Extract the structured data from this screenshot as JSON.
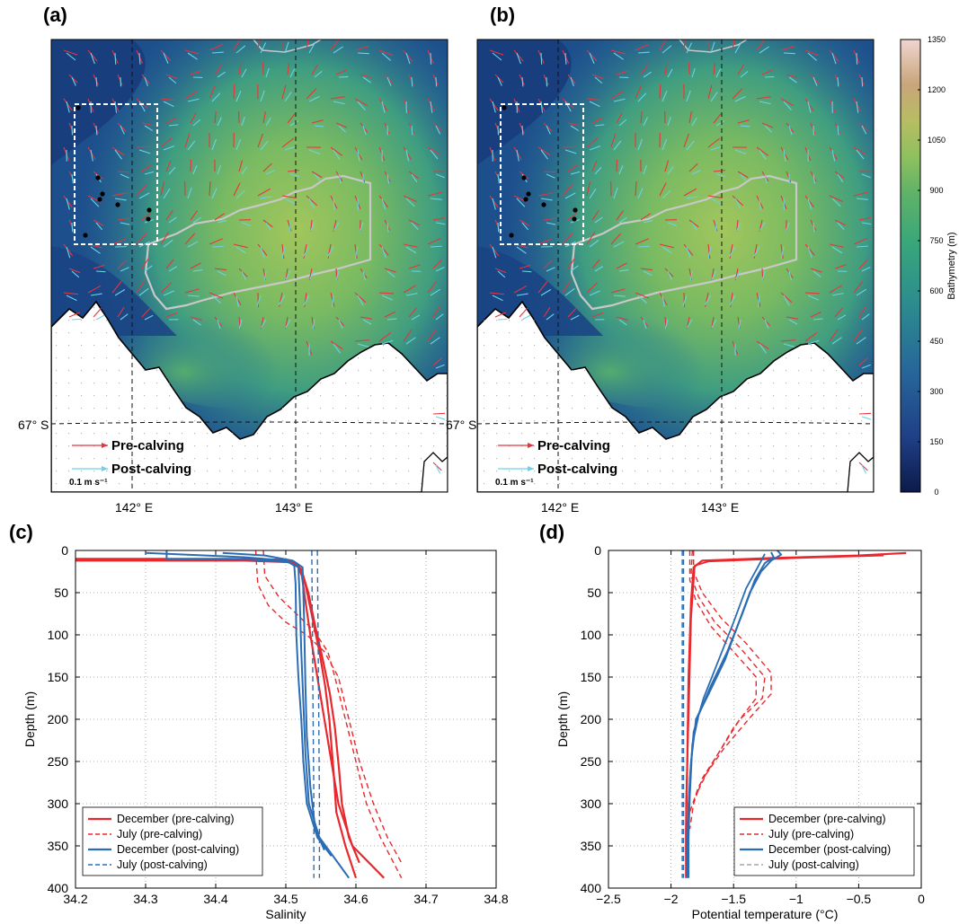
{
  "panel_labels": [
    "(a)",
    "(b)",
    "(c)",
    "(d)"
  ],
  "maps": {
    "lon_labels": [
      "142° E",
      "143° E"
    ],
    "lat_label": "67° S",
    "legend": {
      "pre": "Pre-calving",
      "post": "Post-calving",
      "scale": "0.1 m s⁻¹"
    },
    "colors": {
      "pre": "#e8343c",
      "post": "#6ad3e8",
      "land": "#ffffff"
    }
  },
  "colorbar": {
    "label": "Bathymetry (m)",
    "ticks": [
      "0",
      "150",
      "300",
      "450",
      "600",
      "750",
      "900",
      "1050",
      "1200",
      "1350"
    ]
  },
  "colors": {
    "red": "#e8282d",
    "blue": "#2a6db5",
    "grid": "#9a9a9a"
  },
  "chart_data": [
    {
      "type": "line",
      "panel": "(c)",
      "xlabel": "Salinity",
      "ylabel": "Depth (m)",
      "xlim": [
        34.2,
        34.8
      ],
      "ylim": [
        400,
        0
      ],
      "y_inverted": true,
      "xticks": [
        "34.2",
        "34.3",
        "34.4",
        "34.5",
        "34.6",
        "34.7",
        "34.8"
      ],
      "yticks": [
        "0",
        "50",
        "100",
        "150",
        "200",
        "250",
        "300",
        "350",
        "400"
      ],
      "grid": true,
      "legend_position": "bottom-left",
      "legend": [
        "December (pre-calving)",
        "July (pre-calving)",
        "December (post-calving)",
        "July (post-calving)"
      ],
      "series": [
        {
          "name": "December (pre-calving)",
          "color": "#e8282d",
          "dash": false,
          "width": 2.2,
          "points": [
            [
              34.2,
              10
            ],
            [
              34.42,
              10
            ],
            [
              34.5,
              11
            ],
            [
              34.515,
              15
            ],
            [
              34.523,
              30
            ],
            [
              34.528,
              60
            ],
            [
              34.535,
              100
            ],
            [
              34.545,
              150
            ],
            [
              34.555,
              200
            ],
            [
              34.565,
              250
            ],
            [
              34.575,
              300
            ],
            [
              34.595,
              350
            ],
            [
              34.64,
              388
            ]
          ]
        },
        {
          "name": "December (pre-calving)",
          "color": "#e8282d",
          "dash": false,
          "width": 2.2,
          "points": [
            [
              34.2,
              11
            ],
            [
              34.43,
              11
            ],
            [
              34.5,
              13
            ],
            [
              34.518,
              18
            ],
            [
              34.528,
              40
            ],
            [
              34.538,
              80
            ],
            [
              34.548,
              120
            ],
            [
              34.556,
              160
            ],
            [
              34.562,
              200
            ],
            [
              34.568,
              260
            ],
            [
              34.572,
              310
            ],
            [
              34.585,
              350
            ],
            [
              34.6,
              388
            ]
          ]
        },
        {
          "name": "December (pre-calving)",
          "color": "#e8282d",
          "dash": false,
          "width": 2.2,
          "points": [
            [
              34.2,
              12
            ],
            [
              34.44,
              12
            ],
            [
              34.51,
              14
            ],
            [
              34.522,
              22
            ],
            [
              34.532,
              50
            ],
            [
              34.542,
              90
            ],
            [
              34.553,
              130
            ],
            [
              34.563,
              170
            ],
            [
              34.57,
              210
            ],
            [
              34.576,
              260
            ],
            [
              34.58,
              300
            ],
            [
              34.59,
              340
            ],
            [
              34.605,
              370
            ]
          ]
        },
        {
          "name": "July (pre-calving)",
          "color": "#e8282d",
          "dash": true,
          "width": 1.4,
          "points": [
            [
              34.457,
              0
            ],
            [
              34.46,
              40
            ],
            [
              34.475,
              65
            ],
            [
              34.5,
              85
            ],
            [
              34.53,
              100
            ],
            [
              34.555,
              120
            ],
            [
              34.575,
              150
            ],
            [
              34.59,
              200
            ],
            [
              34.605,
              250
            ],
            [
              34.625,
              300
            ],
            [
              34.645,
              340
            ],
            [
              34.665,
              370
            ]
          ]
        },
        {
          "name": "July (pre-calving)",
          "color": "#e8282d",
          "dash": true,
          "width": 1.4,
          "points": [
            [
              34.468,
              0
            ],
            [
              34.47,
              30
            ],
            [
              34.49,
              55
            ],
            [
              34.515,
              75
            ],
            [
              34.54,
              95
            ],
            [
              34.56,
              120
            ],
            [
              34.57,
              150
            ],
            [
              34.585,
              200
            ],
            [
              34.6,
              250
            ],
            [
              34.615,
              300
            ],
            [
              34.635,
              340
            ],
            [
              34.665,
              388
            ]
          ]
        },
        {
          "name": "December (post-calving)",
          "color": "#2a6db5",
          "dash": false,
          "width": 2.0,
          "points": [
            [
              34.3,
              3
            ],
            [
              34.36,
              5
            ],
            [
              34.44,
              8
            ],
            [
              34.5,
              12
            ],
            [
              34.512,
              18
            ],
            [
              34.514,
              40
            ],
            [
              34.515,
              100
            ],
            [
              34.518,
              150
            ],
            [
              34.522,
              200
            ],
            [
              34.525,
              250
            ],
            [
              34.53,
              300
            ],
            [
              34.545,
              340
            ],
            [
              34.565,
              362
            ]
          ]
        },
        {
          "name": "December (post-calving)",
          "color": "#2a6db5",
          "dash": false,
          "width": 2.0,
          "points": [
            [
              34.33,
              0
            ],
            [
              34.33,
              10
            ],
            [
              34.45,
              11
            ],
            [
              34.505,
              14
            ],
            [
              34.518,
              20
            ],
            [
              34.52,
              60
            ],
            [
              34.522,
              120
            ],
            [
              34.525,
              180
            ],
            [
              34.528,
              240
            ],
            [
              34.533,
              300
            ],
            [
              34.548,
              340
            ],
            [
              34.57,
              365
            ],
            [
              34.59,
              388
            ]
          ]
        },
        {
          "name": "December (post-calving)",
          "color": "#2a6db5",
          "dash": false,
          "width": 2.0,
          "points": [
            [
              34.41,
              3
            ],
            [
              34.47,
              6
            ],
            [
              34.51,
              12
            ],
            [
              34.524,
              20
            ],
            [
              34.526,
              80
            ],
            [
              34.528,
              160
            ],
            [
              34.53,
              220
            ],
            [
              34.535,
              280
            ],
            [
              34.542,
              330
            ],
            [
              34.555,
              355
            ]
          ]
        },
        {
          "name": "July (post-calving)",
          "color": "#2a6db5",
          "dash": true,
          "width": 1.4,
          "points": [
            [
              34.537,
              0
            ],
            [
              34.538,
              100
            ],
            [
              34.539,
              200
            ],
            [
              34.54,
              300
            ],
            [
              34.54,
              388
            ]
          ]
        },
        {
          "name": "July (post-calving)",
          "color": "#2a6db5",
          "dash": true,
          "width": 1.4,
          "points": [
            [
              34.545,
              0
            ],
            [
              34.546,
              100
            ],
            [
              34.547,
              200
            ],
            [
              34.548,
              300
            ],
            [
              34.548,
              388
            ]
          ]
        }
      ]
    },
    {
      "type": "line",
      "panel": "(d)",
      "xlabel": "Potential temperature (°C)",
      "ylabel": "Depth (m)",
      "xlim": [
        -2.5,
        0
      ],
      "ylim": [
        400,
        0
      ],
      "y_inverted": true,
      "xticks": [
        "−2.5",
        "−2",
        "−1.5",
        "−1",
        "−0.5",
        "0"
      ],
      "yticks": [
        "0",
        "50",
        "100",
        "150",
        "200",
        "250",
        "300",
        "350",
        "400"
      ],
      "grid": true,
      "legend_position": "bottom-right",
      "legend": [
        "December (pre-calving)",
        "July (pre-calving)",
        "December (post-calving)",
        "July (post-calving)"
      ],
      "series": [
        {
          "name": "December (pre-calving)",
          "color": "#e8282d",
          "dash": false,
          "width": 2.2,
          "points": [
            [
              -0.12,
              3
            ],
            [
              -0.5,
              6
            ],
            [
              -1.2,
              9
            ],
            [
              -1.75,
              12
            ],
            [
              -1.82,
              20
            ],
            [
              -1.84,
              60
            ],
            [
              -1.86,
              150
            ],
            [
              -1.87,
              250
            ],
            [
              -1.88,
              330
            ],
            [
              -1.88,
              388
            ]
          ]
        },
        {
          "name": "December (pre-calving)",
          "color": "#e8282d",
          "dash": false,
          "width": 1.8,
          "points": [
            [
              -0.3,
              6
            ],
            [
              -1.0,
              9
            ],
            [
              -1.7,
              13
            ],
            [
              -1.81,
              18
            ],
            [
              -1.84,
              80
            ],
            [
              -1.86,
              200
            ],
            [
              -1.88,
              300
            ],
            [
              -1.88,
              360
            ]
          ]
        },
        {
          "name": "July (pre-calving)",
          "color": "#e8282d",
          "dash": true,
          "width": 1.4,
          "points": [
            [
              -1.83,
              0
            ],
            [
              -1.84,
              30
            ],
            [
              -1.78,
              55
            ],
            [
              -1.65,
              85
            ],
            [
              -1.45,
              115
            ],
            [
              -1.25,
              150
            ],
            [
              -1.27,
              175
            ],
            [
              -1.45,
              200
            ],
            [
              -1.62,
              240
            ],
            [
              -1.75,
              270
            ],
            [
              -1.82,
              300
            ],
            [
              -1.85,
              330
            ]
          ]
        },
        {
          "name": "July (pre-calving)",
          "color": "#e8282d",
          "dash": true,
          "width": 1.4,
          "points": [
            [
              -1.85,
              0
            ],
            [
              -1.85,
              35
            ],
            [
              -1.8,
              60
            ],
            [
              -1.68,
              90
            ],
            [
              -1.5,
              120
            ],
            [
              -1.32,
              150
            ],
            [
              -1.32,
              175
            ],
            [
              -1.5,
              210
            ],
            [
              -1.66,
              250
            ],
            [
              -1.78,
              280
            ],
            [
              -1.85,
              310
            ]
          ]
        },
        {
          "name": "July (pre-calving)",
          "color": "#e8282d",
          "dash": true,
          "width": 1.4,
          "points": [
            [
              -1.82,
              0
            ],
            [
              -1.82,
              25
            ],
            [
              -1.75,
              50
            ],
            [
              -1.6,
              80
            ],
            [
              -1.4,
              110
            ],
            [
              -1.2,
              145
            ],
            [
              -1.2,
              170
            ],
            [
              -1.38,
              200
            ],
            [
              -1.58,
              235
            ],
            [
              -1.72,
              265
            ],
            [
              -1.8,
              290
            ]
          ]
        },
        {
          "name": "December (post-calving)",
          "color": "#2a6db5",
          "dash": false,
          "width": 2.0,
          "points": [
            [
              -1.15,
              0
            ],
            [
              -1.12,
              5
            ],
            [
              -1.2,
              12
            ],
            [
              -1.28,
              25
            ],
            [
              -1.37,
              50
            ],
            [
              -1.47,
              90
            ],
            [
              -1.57,
              130
            ],
            [
              -1.7,
              170
            ],
            [
              -1.8,
              200
            ],
            [
              -1.84,
              250
            ],
            [
              -1.86,
              300
            ],
            [
              -1.87,
              350
            ],
            [
              -1.87,
              388
            ]
          ]
        },
        {
          "name": "December (post-calving)",
          "color": "#2a6db5",
          "dash": false,
          "width": 2.0,
          "points": [
            [
              -1.2,
              2
            ],
            [
              -1.18,
              8
            ],
            [
              -1.25,
              15
            ],
            [
              -1.33,
              35
            ],
            [
              -1.43,
              75
            ],
            [
              -1.55,
              120
            ],
            [
              -1.68,
              160
            ],
            [
              -1.78,
              195
            ],
            [
              -1.83,
              230
            ],
            [
              -1.85,
              290
            ],
            [
              -1.86,
              340
            ],
            [
              -1.86,
              388
            ]
          ]
        },
        {
          "name": "December (post-calving)",
          "color": "#2a6db5",
          "dash": false,
          "width": 1.8,
          "points": [
            [
              -1.25,
              4
            ],
            [
              -1.3,
              18
            ],
            [
              -1.4,
              45
            ],
            [
              -1.5,
              85
            ],
            [
              -1.62,
              130
            ],
            [
              -1.74,
              175
            ],
            [
              -1.82,
              215
            ],
            [
              -1.85,
              270
            ],
            [
              -1.86,
              330
            ]
          ]
        },
        {
          "name": "July (post-calving)",
          "color": "#2a6db5",
          "dash": true,
          "width": 1.4,
          "points": [
            [
              -1.9,
              0
            ],
            [
              -1.9,
              100
            ],
            [
              -1.9,
              200
            ],
            [
              -1.9,
              300
            ],
            [
              -1.9,
              388
            ]
          ]
        },
        {
          "name": "July (post-calving)",
          "color": "#2a6db5",
          "dash": true,
          "width": 1.4,
          "points": [
            [
              -1.91,
              0
            ],
            [
              -1.91,
              150
            ],
            [
              -1.91,
              300
            ],
            [
              -1.91,
              388
            ]
          ]
        }
      ]
    }
  ]
}
